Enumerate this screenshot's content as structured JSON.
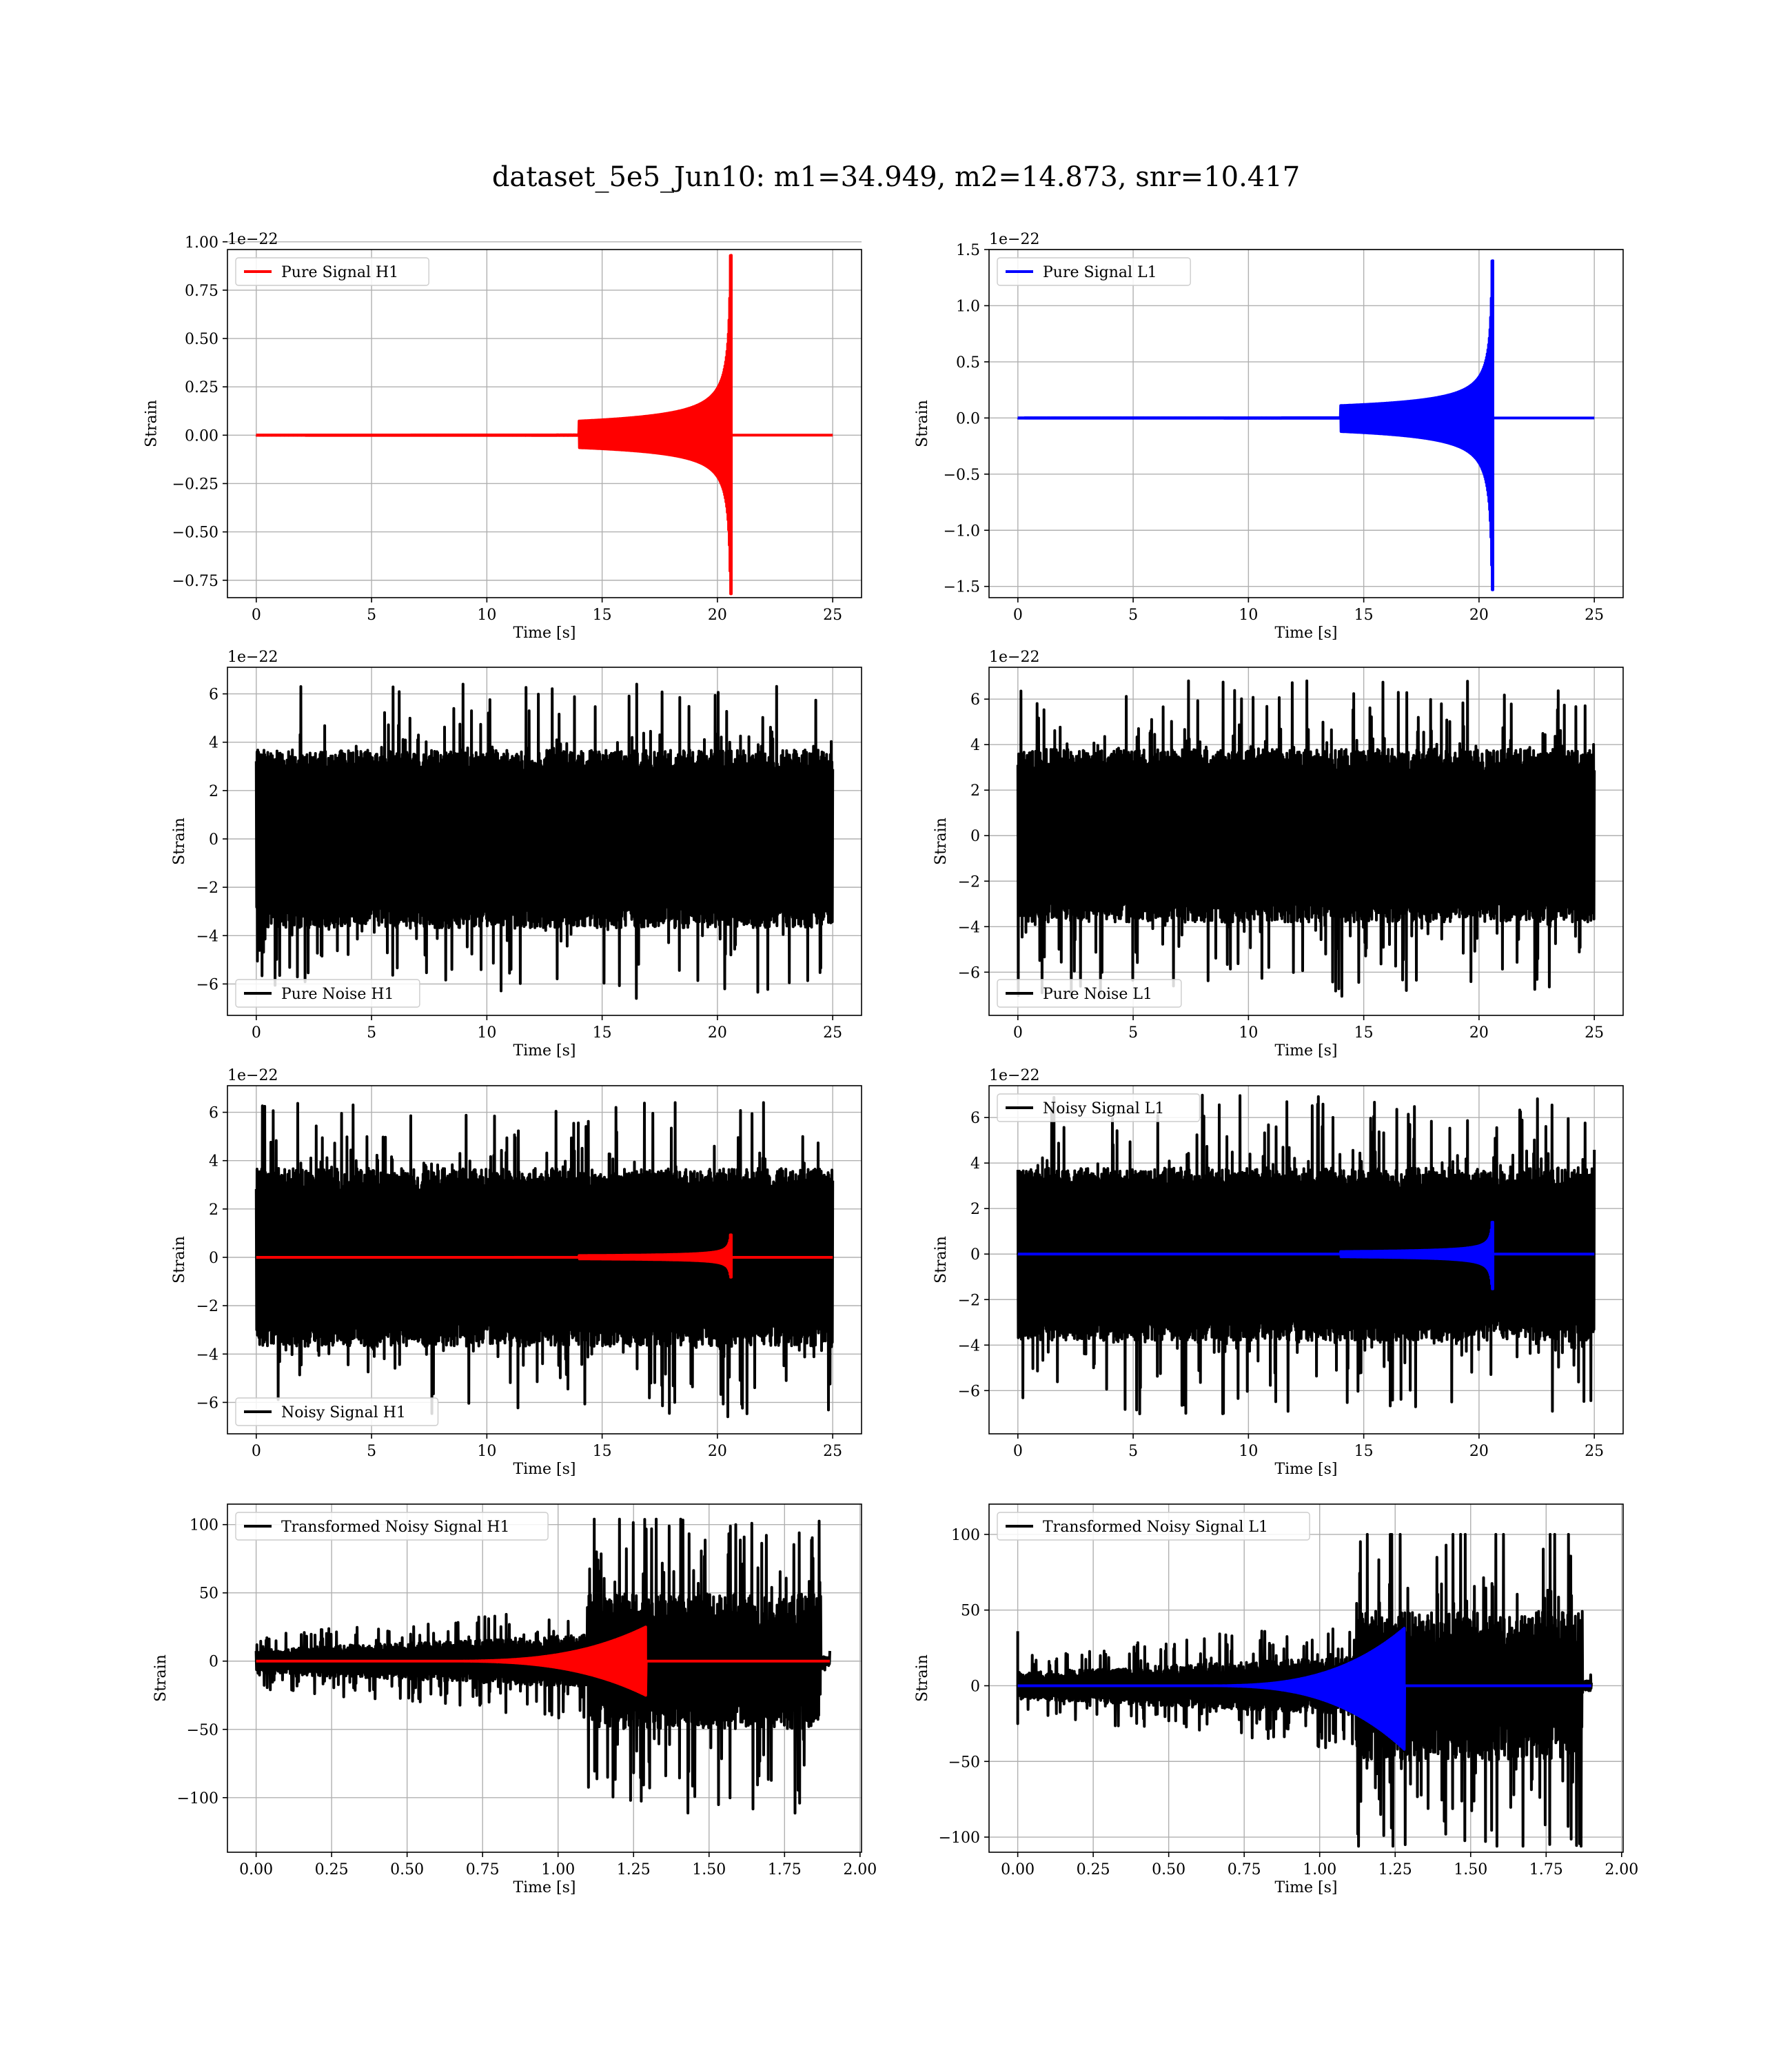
{
  "figure": {
    "suptitle": "dataset_5e5_Jun10: m1=34.949, m2=14.873, snr=10.417"
  },
  "colors": {
    "h1": "#ff0000",
    "l1": "#0000ff",
    "noise": "#000000",
    "grid": "#b0b0b0"
  },
  "chart_data": [
    {
      "id": "pure-signal-h1",
      "type": "line",
      "xlabel": "Time [s]",
      "ylabel": "Strain",
      "offset_text": "1e−22",
      "xlim": [
        -1.25,
        26.25
      ],
      "ylim": [
        -0.84,
        0.96
      ],
      "xticks": [
        0,
        5,
        10,
        15,
        20,
        25
      ],
      "xtick_labels": [
        "0",
        "5",
        "10",
        "15",
        "20",
        "25"
      ],
      "yticks": [
        -0.75,
        -0.5,
        -0.25,
        0,
        0.25,
        0.5,
        0.75,
        1.0
      ],
      "ytick_labels": [
        "−0.75",
        "−0.50",
        "−0.25",
        "0.00",
        "0.25",
        "0.50",
        "0.75",
        "1.00"
      ],
      "legend": {
        "loc": "upper left",
        "entries": [
          {
            "label": "Pure Signal H1",
            "color": "#ff0000"
          }
        ]
      },
      "series": [
        {
          "name": "Pure Signal H1",
          "color": "#ff0000",
          "kind": "chirp",
          "x_range": [
            0,
            25
          ],
          "merger": 20.6,
          "peak_pos": 0.93,
          "peak_neg": -0.82
        }
      ]
    },
    {
      "id": "pure-signal-l1",
      "type": "line",
      "xlabel": "Time [s]",
      "ylabel": "Strain",
      "offset_text": "1e−22",
      "xlim": [
        -1.25,
        26.25
      ],
      "ylim": [
        -1.6,
        1.5
      ],
      "xticks": [
        0,
        5,
        10,
        15,
        20,
        25
      ],
      "xtick_labels": [
        "0",
        "5",
        "10",
        "15",
        "20",
        "25"
      ],
      "yticks": [
        -1.5,
        -1.0,
        -0.5,
        0,
        0.5,
        1.0,
        1.5
      ],
      "ytick_labels": [
        "−1.5",
        "−1.0",
        "−0.5",
        "0.0",
        "0.5",
        "1.0",
        "1.5"
      ],
      "legend": {
        "loc": "upper left",
        "entries": [
          {
            "label": "Pure Signal L1",
            "color": "#0000ff"
          }
        ]
      },
      "series": [
        {
          "name": "Pure Signal L1",
          "color": "#0000ff",
          "kind": "chirp",
          "x_range": [
            0,
            25
          ],
          "merger": 20.6,
          "peak_pos": 1.4,
          "peak_neg": -1.53
        }
      ]
    },
    {
      "id": "pure-noise-h1",
      "type": "line",
      "xlabel": "Time [s]",
      "ylabel": "Strain",
      "offset_text": "1e−22",
      "xlim": [
        -1.25,
        26.25
      ],
      "ylim": [
        -7.3,
        7.1
      ],
      "xticks": [
        0,
        5,
        10,
        15,
        20,
        25
      ],
      "xtick_labels": [
        "0",
        "5",
        "10",
        "15",
        "20",
        "25"
      ],
      "yticks": [
        -6,
        -4,
        -2,
        0,
        2,
        4,
        6
      ],
      "ytick_labels": [
        "−6",
        "−4",
        "−2",
        "0",
        "2",
        "4",
        "6"
      ],
      "legend": {
        "loc": "lower left",
        "entries": [
          {
            "label": "Pure Noise H1",
            "color": "#000000"
          }
        ]
      },
      "series": [
        {
          "name": "Pure Noise H1",
          "color": "#000000",
          "kind": "noise",
          "x_range": [
            0,
            25
          ],
          "max": 6.4,
          "min": -6.6,
          "band": 3.2
        }
      ]
    },
    {
      "id": "pure-noise-l1",
      "type": "line",
      "xlabel": "Time [s]",
      "ylabel": "Strain",
      "offset_text": "1e−22",
      "xlim": [
        -1.25,
        26.25
      ],
      "ylim": [
        -7.9,
        7.4
      ],
      "xticks": [
        0,
        5,
        10,
        15,
        20,
        25
      ],
      "xtick_labels": [
        "0",
        "5",
        "10",
        "15",
        "20",
        "25"
      ],
      "yticks": [
        -6,
        -4,
        -2,
        0,
        2,
        4,
        6
      ],
      "ytick_labels": [
        "−6",
        "−4",
        "−2",
        "0",
        "2",
        "4",
        "6"
      ],
      "legend": {
        "loc": "lower left",
        "entries": [
          {
            "label": "Pure Noise L1",
            "color": "#000000"
          }
        ]
      },
      "series": [
        {
          "name": "Pure Noise L1",
          "color": "#000000",
          "kind": "noise",
          "x_range": [
            0,
            25
          ],
          "max": 6.8,
          "min": -7.1,
          "band": 3.3
        }
      ]
    },
    {
      "id": "noisy-signal-h1",
      "type": "line",
      "xlabel": "Time [s]",
      "ylabel": "Strain",
      "offset_text": "1e−22",
      "xlim": [
        -1.25,
        26.25
      ],
      "ylim": [
        -7.3,
        7.1
      ],
      "xticks": [
        0,
        5,
        10,
        15,
        20,
        25
      ],
      "xtick_labels": [
        "0",
        "5",
        "10",
        "15",
        "20",
        "25"
      ],
      "yticks": [
        -6,
        -4,
        -2,
        0,
        2,
        4,
        6
      ],
      "ytick_labels": [
        "−6",
        "−4",
        "−2",
        "0",
        "2",
        "4",
        "6"
      ],
      "legend": {
        "loc": "lower left",
        "entries": [
          {
            "label": "Noisy Signal H1",
            "color": "#000000"
          }
        ]
      },
      "series": [
        {
          "name": "Noisy Signal H1",
          "color": "#000000",
          "kind": "noise",
          "x_range": [
            0,
            25
          ],
          "max": 6.4,
          "min": -6.6,
          "band": 3.2
        },
        {
          "color": "#ff0000",
          "kind": "chirp",
          "x_range": [
            0,
            25
          ],
          "merger": 20.6,
          "peak_pos": 0.93,
          "peak_neg": -0.82
        }
      ]
    },
    {
      "id": "noisy-signal-l1",
      "type": "line",
      "xlabel": "Time [s]",
      "ylabel": "Strain",
      "offset_text": "1e−22",
      "xlim": [
        -1.25,
        26.25
      ],
      "ylim": [
        -7.9,
        7.4
      ],
      "xticks": [
        0,
        5,
        10,
        15,
        20,
        25
      ],
      "xtick_labels": [
        "0",
        "5",
        "10",
        "15",
        "20",
        "25"
      ],
      "yticks": [
        -6,
        -4,
        -2,
        0,
        2,
        4,
        6
      ],
      "ytick_labels": [
        "−6",
        "−4",
        "−2",
        "0",
        "2",
        "4",
        "6"
      ],
      "legend": {
        "loc": "upper left",
        "entries": [
          {
            "label": "Noisy Signal L1",
            "color": "#000000"
          }
        ]
      },
      "series": [
        {
          "name": "Noisy Signal L1",
          "color": "#000000",
          "kind": "noise",
          "x_range": [
            0,
            25
          ],
          "max": 7.0,
          "min": -7.1,
          "band": 3.3
        },
        {
          "color": "#0000ff",
          "kind": "chirp",
          "x_range": [
            0,
            25
          ],
          "merger": 20.6,
          "peak_pos": 1.4,
          "peak_neg": -1.53
        }
      ]
    },
    {
      "id": "transformed-noisy-signal-h1",
      "type": "line",
      "xlabel": "Time [s]",
      "ylabel": "Strain",
      "offset_text": "",
      "xlim": [
        -0.095,
        2.005
      ],
      "ylim": [
        -140,
        115
      ],
      "xticks": [
        0,
        0.25,
        0.5,
        0.75,
        1.0,
        1.25,
        1.5,
        1.75,
        2.0
      ],
      "xtick_labels": [
        "0.00",
        "0.25",
        "0.50",
        "0.75",
        "1.00",
        "1.25",
        "1.50",
        "1.75",
        "2.00"
      ],
      "yticks": [
        -100,
        -50,
        0,
        50,
        100
      ],
      "ytick_labels": [
        "−100",
        "−50",
        "0",
        "50",
        "100"
      ],
      "legend": {
        "loc": "upper left",
        "entries": [
          {
            "label": "Transformed Noisy Signal H1",
            "color": "#000000"
          }
        ]
      },
      "series": [
        {
          "name": "Transformed Noisy Signal H1",
          "color": "#000000",
          "kind": "tnoise",
          "x_range": [
            0,
            1.9
          ],
          "jump": 1.1,
          "end": 1.87,
          "max": 104,
          "min": -132,
          "pre": 8,
          "post": 45
        },
        {
          "color": "#ff0000",
          "kind": "tchirp",
          "x_range": [
            0,
            1.9
          ],
          "merger": 1.29,
          "peak_pos": 25,
          "peak_neg": -25
        }
      ]
    },
    {
      "id": "transformed-noisy-signal-l1",
      "type": "line",
      "xlabel": "Time [s]",
      "ylabel": "Strain",
      "offset_text": "",
      "xlim": [
        -0.095,
        2.005
      ],
      "ylim": [
        -110,
        120
      ],
      "xticks": [
        0,
        0.25,
        0.5,
        0.75,
        1.0,
        1.25,
        1.5,
        1.75,
        2.0
      ],
      "xtick_labels": [
        "0.00",
        "0.25",
        "0.50",
        "0.75",
        "1.00",
        "1.25",
        "1.50",
        "1.75",
        "2.00"
      ],
      "yticks": [
        -100,
        -50,
        0,
        50,
        100
      ],
      "ytick_labels": [
        "−100",
        "−50",
        "0",
        "50",
        "100"
      ],
      "legend": {
        "loc": "upper left",
        "entries": [
          {
            "label": "Transformed Noisy Signal L1",
            "color": "#000000"
          }
        ]
      },
      "series": [
        {
          "name": "Transformed Noisy Signal L1",
          "color": "#000000",
          "kind": "tnoise",
          "x_range": [
            0,
            1.9
          ],
          "jump": 1.12,
          "end": 1.87,
          "max": 100,
          "min": -106,
          "pre": 8,
          "post": 45,
          "spike0": 36
        },
        {
          "color": "#0000ff",
          "kind": "tchirp",
          "x_range": [
            0,
            1.9
          ],
          "merger": 1.28,
          "peak_pos": 38,
          "peak_neg": -42
        }
      ]
    }
  ]
}
